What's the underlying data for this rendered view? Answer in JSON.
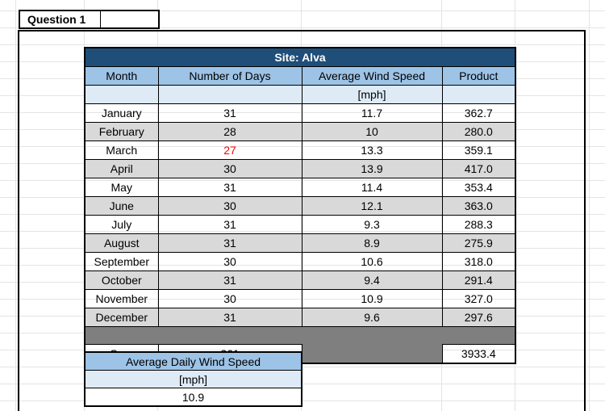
{
  "question_label": "Question 1",
  "site_table": {
    "title": "Site: Alva",
    "columns": [
      "Month",
      "Number of Days",
      "Average Wind Speed",
      "Product"
    ],
    "unit": "[mph]",
    "rows": [
      {
        "month": "January",
        "days": "31",
        "wind": "11.7",
        "product": "362.7"
      },
      {
        "month": "February",
        "days": "28",
        "wind": "10",
        "product": "280.0"
      },
      {
        "month": "March",
        "days": "27",
        "wind": "13.3",
        "product": "359.1",
        "days_color": "#FF0000"
      },
      {
        "month": "April",
        "days": "30",
        "wind": "13.9",
        "product": "417.0"
      },
      {
        "month": "May",
        "days": "31",
        "wind": "11.4",
        "product": "353.4"
      },
      {
        "month": "June",
        "days": "30",
        "wind": "12.1",
        "product": "363.0"
      },
      {
        "month": "July",
        "days": "31",
        "wind": "9.3",
        "product": "288.3"
      },
      {
        "month": "August",
        "days": "31",
        "wind": "8.9",
        "product": "275.9"
      },
      {
        "month": "September",
        "days": "30",
        "wind": "10.6",
        "product": "318.0"
      },
      {
        "month": "October",
        "days": "31",
        "wind": "9.4",
        "product": "291.4"
      },
      {
        "month": "November",
        "days": "30",
        "wind": "10.9",
        "product": "327.0"
      },
      {
        "month": "December",
        "days": "31",
        "wind": "9.6",
        "product": "297.6"
      }
    ],
    "sum_label": "Sum",
    "sum_days": "361",
    "sum_product": "3933.4"
  },
  "avg_table": {
    "title": "Average Daily Wind Speed",
    "unit": "[mph]",
    "value": "10.9"
  },
  "colors": {
    "title_bg": "#1F4E79",
    "title_text": "#FFFFFF",
    "header_bg": "#9DC3E6",
    "unit_bg": "#DEEBF7",
    "alt_row_bg": "#D9D9D9",
    "spacer_bg": "#7F7F7F",
    "highlight_text": "#FF0000",
    "gridline": "#E4E4E4"
  }
}
